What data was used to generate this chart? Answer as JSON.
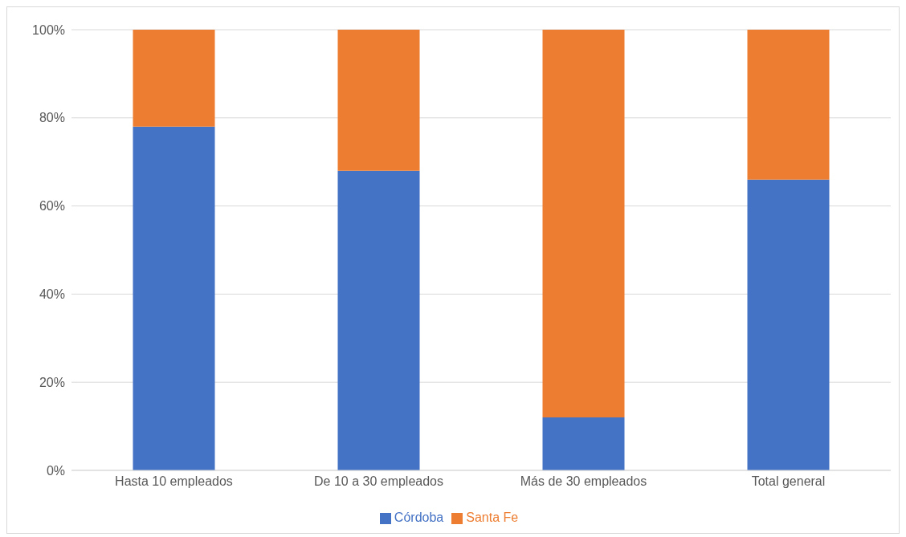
{
  "chart_data": {
    "type": "bar",
    "stacked": true,
    "categories": [
      "Hasta 10 empleados",
      "De 10 a 30 empleados",
      "Más de 30 empleados",
      "Total general"
    ],
    "series": [
      {
        "name": "Córdoba",
        "color": "#4472c4",
        "values": [
          78,
          68,
          12,
          66
        ]
      },
      {
        "name": "Santa Fe",
        "color": "#ed7d31",
        "values": [
          22,
          32,
          88,
          34
        ]
      }
    ],
    "ylim": [
      0,
      100
    ],
    "yticks": [
      {
        "value": 0,
        "label": "0%"
      },
      {
        "value": 20,
        "label": "20%"
      },
      {
        "value": 40,
        "label": "40%"
      },
      {
        "value": 60,
        "label": "60%"
      },
      {
        "value": 80,
        "label": "80%"
      },
      {
        "value": 100,
        "label": "100%"
      }
    ],
    "grid": "y",
    "legend": "bottom"
  }
}
